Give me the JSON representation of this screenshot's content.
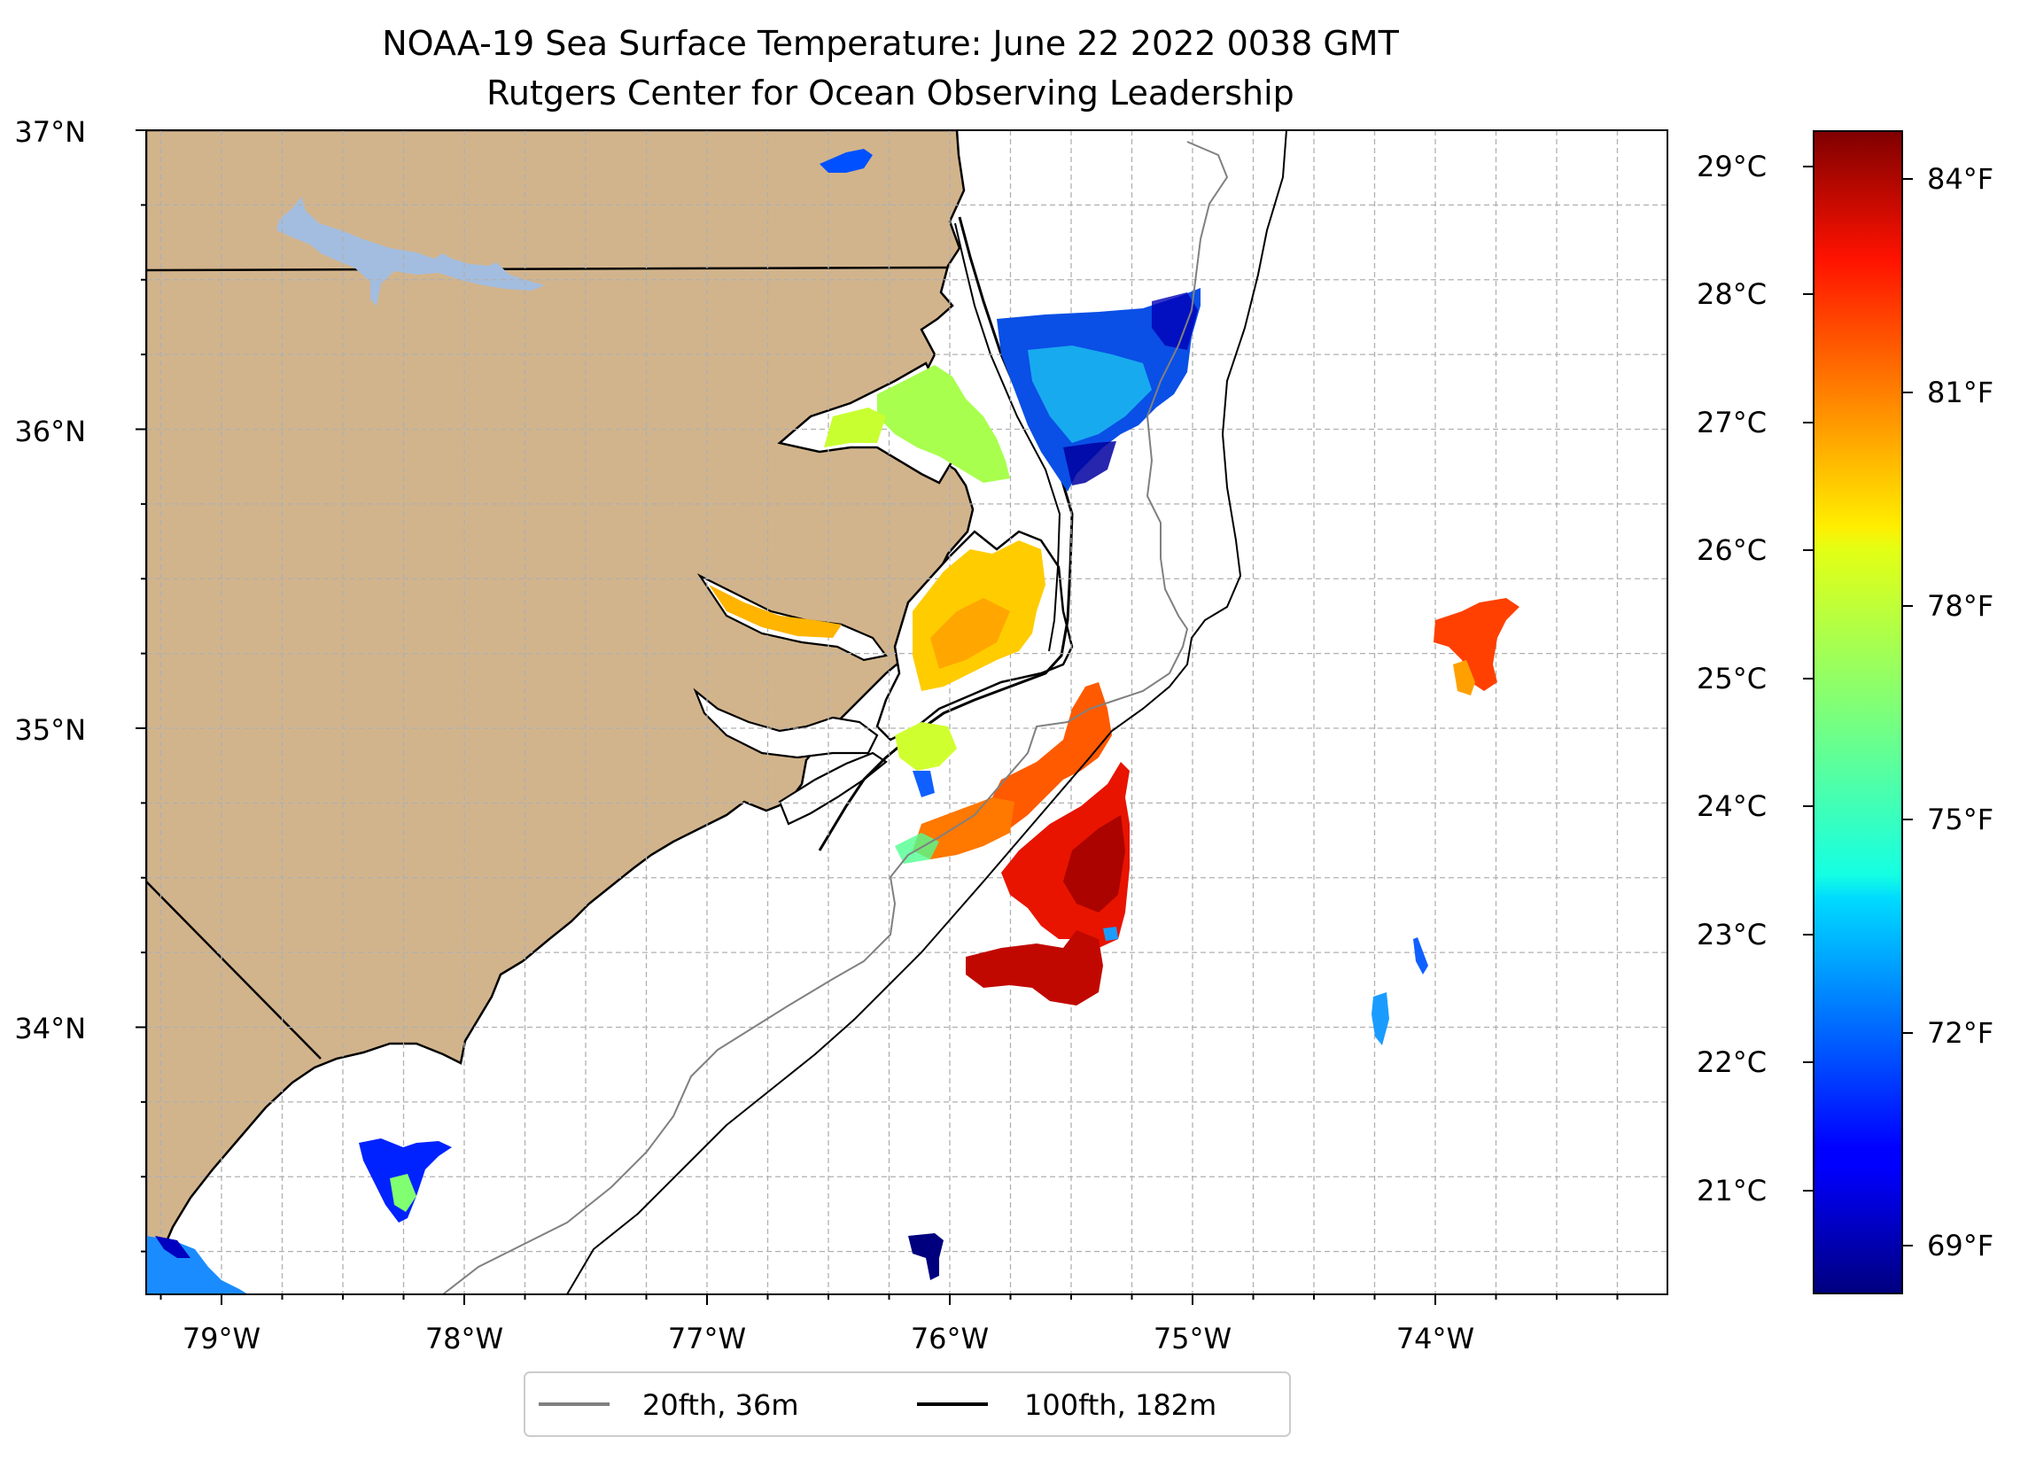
{
  "title": {
    "line1": "NOAA-19 Sea Surface Temperature: June 22 2022 0038 GMT",
    "line2": "Rutgers Center for Ocean Observing Leadership"
  },
  "map": {
    "lat_labels": [
      "37°N",
      "36°N",
      "35°N",
      "34°N"
    ],
    "lon_labels": [
      "79°W",
      "78°W",
      "77°W",
      "76°W",
      "75°W",
      "74°W"
    ],
    "lat_range": [
      33.1,
      37.0
    ],
    "lon_range": [
      -79.3,
      -73.0
    ],
    "land_color": "#d2b48c",
    "water_body_color": "#a3bde0",
    "grid": "dashed, 0.25° spacing"
  },
  "colorbar": {
    "colormap": "jet",
    "celsius_labels": [
      "29°C",
      "28°C",
      "27°C",
      "26°C",
      "25°C",
      "24°C",
      "23°C",
      "22°C",
      "21°C"
    ],
    "fahrenheit_labels": [
      "84°F",
      "81°F",
      "78°F",
      "75°F",
      "72°F",
      "69°F"
    ],
    "celsius_range": [
      20.3,
      29.3
    ]
  },
  "legend": {
    "position": "bottom-center",
    "items": [
      {
        "label": "20fth, 36m",
        "color": "#808080"
      },
      {
        "label": "100fth, 182m",
        "color": "#000000"
      }
    ]
  }
}
